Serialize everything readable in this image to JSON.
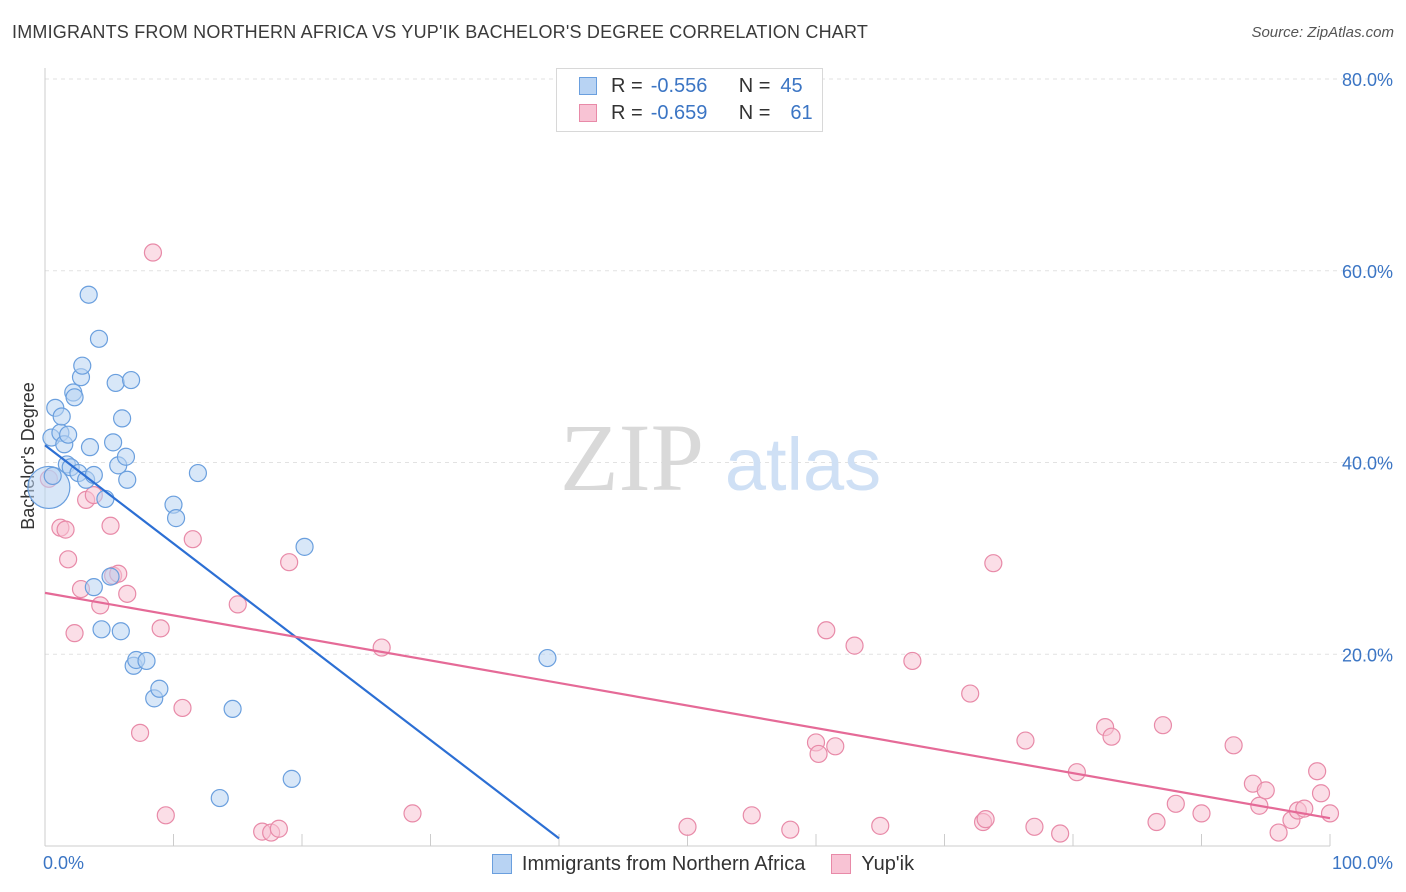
{
  "header": {
    "title": "IMMIGRANTS FROM NORTHERN AFRICA VS YUP'IK BACHELOR'S DEGREE CORRELATION CHART",
    "source": "Source: ZipAtlas.com"
  },
  "watermark": {
    "zip": "ZIP",
    "atlas": "atlas"
  },
  "colors": {
    "blue_fill": "#b8d3f3",
    "blue_stroke": "#6a9fde",
    "blue_line": "#2c6fd4",
    "pink_fill": "#f8c3d4",
    "pink_stroke": "#e88aa8",
    "pink_line": "#e56a97",
    "axis_label": "#3b75c4",
    "grid": "#e2e2e2"
  },
  "legend": {
    "rows": [
      {
        "r_label": "R =",
        "r_value": "-0.556",
        "n_label": "N =",
        "n_value": "45"
      },
      {
        "r_label": "R =",
        "r_value": "-0.659",
        "n_label": "N =",
        "n_value": "61"
      }
    ]
  },
  "bottom_legend": {
    "items": [
      "Immigrants from Northern Africa",
      "Yup'ik"
    ]
  },
  "chart_data": {
    "type": "scatter",
    "title": "IMMIGRANTS FROM NORTHERN AFRICA VS YUP'IK BACHELOR'S DEGREE CORRELATION CHART",
    "xlabel": "",
    "ylabel": "Bachelor's Degree",
    "xlim": [
      0,
      100
    ],
    "ylim": [
      0,
      80
    ],
    "x_tick_labels": [
      "0.0%",
      "100.0%"
    ],
    "y_ticks": [
      20,
      40,
      60,
      80
    ],
    "y_tick_labels": [
      "20.0%",
      "40.0%",
      "60.0%",
      "80.0%"
    ],
    "grid": true,
    "legend_position": "top-center",
    "series": [
      {
        "name": "Immigrants from Northern Africa",
        "color": "#6a9fde",
        "r": -0.556,
        "n": 45,
        "trendline": {
          "x": [
            0,
            40
          ],
          "y": [
            41.8,
            0.8
          ]
        },
        "points": [
          {
            "x": 0.3,
            "y": 37.4,
            "big": true
          },
          {
            "x": 0.5,
            "y": 42.6
          },
          {
            "x": 0.8,
            "y": 45.7
          },
          {
            "x": 1.2,
            "y": 43.1
          },
          {
            "x": 1.3,
            "y": 44.8
          },
          {
            "x": 1.5,
            "y": 41.9
          },
          {
            "x": 1.7,
            "y": 39.8
          },
          {
            "x": 1.8,
            "y": 42.9
          },
          {
            "x": 2.0,
            "y": 39.5
          },
          {
            "x": 2.2,
            "y": 47.3
          },
          {
            "x": 2.3,
            "y": 46.8
          },
          {
            "x": 2.6,
            "y": 38.9
          },
          {
            "x": 2.8,
            "y": 48.9
          },
          {
            "x": 2.9,
            "y": 50.1
          },
          {
            "x": 3.2,
            "y": 38.2
          },
          {
            "x": 3.4,
            "y": 57.5
          },
          {
            "x": 3.5,
            "y": 41.6
          },
          {
            "x": 3.8,
            "y": 38.7
          },
          {
            "x": 3.8,
            "y": 27.0
          },
          {
            "x": 4.2,
            "y": 52.9
          },
          {
            "x": 4.4,
            "y": 22.6
          },
          {
            "x": 4.7,
            "y": 36.2
          },
          {
            "x": 5.1,
            "y": 28.1
          },
          {
            "x": 5.3,
            "y": 42.1
          },
          {
            "x": 5.5,
            "y": 48.3
          },
          {
            "x": 5.7,
            "y": 39.7
          },
          {
            "x": 5.9,
            "y": 22.4
          },
          {
            "x": 6.0,
            "y": 44.6
          },
          {
            "x": 6.3,
            "y": 40.6
          },
          {
            "x": 6.4,
            "y": 38.2
          },
          {
            "x": 6.7,
            "y": 48.6
          },
          {
            "x": 6.9,
            "y": 18.8
          },
          {
            "x": 7.1,
            "y": 19.4
          },
          {
            "x": 7.9,
            "y": 19.3
          },
          {
            "x": 8.5,
            "y": 15.4
          },
          {
            "x": 8.9,
            "y": 16.4
          },
          {
            "x": 10.0,
            "y": 35.6
          },
          {
            "x": 10.2,
            "y": 34.2
          },
          {
            "x": 11.9,
            "y": 38.9
          },
          {
            "x": 13.6,
            "y": 5.0
          },
          {
            "x": 14.6,
            "y": 14.3
          },
          {
            "x": 19.2,
            "y": 7.0
          },
          {
            "x": 20.2,
            "y": 31.2
          },
          {
            "x": 39.1,
            "y": 19.6
          },
          {
            "x": 0.6,
            "y": 38.6
          }
        ]
      },
      {
        "name": "Yup'ik",
        "color": "#e88aa8",
        "r": -0.659,
        "n": 61,
        "trendline": {
          "x": [
            0,
            100
          ],
          "y": [
            26.4,
            2.9
          ]
        },
        "points": [
          {
            "x": 0.3,
            "y": 38.3
          },
          {
            "x": 1.2,
            "y": 33.2
          },
          {
            "x": 1.6,
            "y": 33.0
          },
          {
            "x": 1.8,
            "y": 29.9
          },
          {
            "x": 2.3,
            "y": 22.2
          },
          {
            "x": 2.8,
            "y": 26.8
          },
          {
            "x": 3.2,
            "y": 36.1
          },
          {
            "x": 3.8,
            "y": 36.6
          },
          {
            "x": 4.3,
            "y": 25.1
          },
          {
            "x": 5.1,
            "y": 33.4
          },
          {
            "x": 5.3,
            "y": 28.2
          },
          {
            "x": 5.7,
            "y": 28.4
          },
          {
            "x": 6.4,
            "y": 26.3
          },
          {
            "x": 7.4,
            "y": 11.8
          },
          {
            "x": 8.4,
            "y": 61.9
          },
          {
            "x": 9.0,
            "y": 22.7
          },
          {
            "x": 9.4,
            "y": 3.2
          },
          {
            "x": 10.7,
            "y": 14.4
          },
          {
            "x": 11.5,
            "y": 32.0
          },
          {
            "x": 15.0,
            "y": 25.2
          },
          {
            "x": 16.9,
            "y": 1.5
          },
          {
            "x": 17.6,
            "y": 1.4
          },
          {
            "x": 18.2,
            "y": 1.8
          },
          {
            "x": 19.0,
            "y": 29.6
          },
          {
            "x": 26.2,
            "y": 20.7
          },
          {
            "x": 28.6,
            "y": 3.4
          },
          {
            "x": 50.0,
            "y": 2.0
          },
          {
            "x": 55.0,
            "y": 3.2
          },
          {
            "x": 58.0,
            "y": 1.7
          },
          {
            "x": 60.0,
            "y": 10.8
          },
          {
            "x": 60.2,
            "y": 9.6
          },
          {
            "x": 60.8,
            "y": 22.5
          },
          {
            "x": 61.5,
            "y": 10.4
          },
          {
            "x": 63.0,
            "y": 20.9
          },
          {
            "x": 65.0,
            "y": 2.1
          },
          {
            "x": 67.5,
            "y": 19.3
          },
          {
            "x": 72.0,
            "y": 15.9
          },
          {
            "x": 73.0,
            "y": 2.5
          },
          {
            "x": 73.2,
            "y": 2.8
          },
          {
            "x": 73.8,
            "y": 29.5
          },
          {
            "x": 76.3,
            "y": 11.0
          },
          {
            "x": 77.0,
            "y": 2.0
          },
          {
            "x": 79.0,
            "y": 1.3
          },
          {
            "x": 80.3,
            "y": 7.7
          },
          {
            "x": 82.5,
            "y": 12.4
          },
          {
            "x": 83.0,
            "y": 11.4
          },
          {
            "x": 86.5,
            "y": 2.5
          },
          {
            "x": 87.0,
            "y": 12.6
          },
          {
            "x": 88.0,
            "y": 4.4
          },
          {
            "x": 90.0,
            "y": 3.4
          },
          {
            "x": 92.5,
            "y": 10.5
          },
          {
            "x": 94.0,
            "y": 6.5
          },
          {
            "x": 94.5,
            "y": 4.2
          },
          {
            "x": 95.0,
            "y": 5.8
          },
          {
            "x": 96.0,
            "y": 1.4
          },
          {
            "x": 97.0,
            "y": 2.7
          },
          {
            "x": 97.5,
            "y": 3.7
          },
          {
            "x": 98.0,
            "y": 3.9
          },
          {
            "x": 99.0,
            "y": 7.8
          },
          {
            "x": 99.3,
            "y": 5.5
          },
          {
            "x": 100.0,
            "y": 3.4
          }
        ]
      }
    ]
  }
}
